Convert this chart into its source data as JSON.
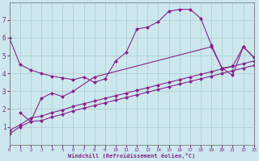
{
  "xlabel": "Windchill (Refroidissement éolien,°C)",
  "background_color": "#cce8ee",
  "grid_color": "#aacccc",
  "line_color": "#882288",
  "xlim": [
    0,
    23
  ],
  "ylim": [
    0,
    8
  ],
  "xticks": [
    0,
    1,
    2,
    3,
    4,
    5,
    6,
    7,
    8,
    9,
    10,
    11,
    12,
    13,
    14,
    15,
    16,
    17,
    18,
    19,
    20,
    21,
    22,
    23
  ],
  "yticks": [
    1,
    2,
    3,
    4,
    5,
    6,
    7
  ],
  "line1_x": [
    0,
    1,
    2,
    3,
    4,
    5,
    6,
    7,
    8,
    9,
    10,
    11,
    12,
    13,
    14,
    15,
    16,
    17,
    18,
    19,
    20,
    21,
    22,
    23
  ],
  "line1_y": [
    0.6,
    1.0,
    1.3,
    1.35,
    1.55,
    1.7,
    1.9,
    2.05,
    2.2,
    2.35,
    2.5,
    2.65,
    2.8,
    2.95,
    3.1,
    3.25,
    3.4,
    3.55,
    3.7,
    3.85,
    4.0,
    4.15,
    4.3,
    4.45
  ],
  "line2_x": [
    0,
    1,
    2,
    3,
    4,
    5,
    6,
    7,
    8,
    9,
    10,
    11,
    12,
    13,
    14,
    15,
    16,
    17,
    18,
    19,
    20,
    21,
    22,
    23
  ],
  "line2_y": [
    0.8,
    1.1,
    1.5,
    1.6,
    1.8,
    1.95,
    2.15,
    2.3,
    2.45,
    2.6,
    2.75,
    2.9,
    3.05,
    3.2,
    3.35,
    3.5,
    3.65,
    3.8,
    3.95,
    4.1,
    4.25,
    4.4,
    4.55,
    4.7
  ],
  "line3_x": [
    1,
    2,
    3,
    4,
    5,
    6,
    8,
    19,
    20,
    21,
    22,
    23
  ],
  "line3_y": [
    1.8,
    1.3,
    2.6,
    2.9,
    2.7,
    3.0,
    3.8,
    5.5,
    4.3,
    4.4,
    5.5,
    4.9
  ],
  "linemain_x": [
    0,
    1,
    2,
    3,
    4,
    5,
    6,
    7,
    8,
    9,
    10,
    11,
    12,
    13,
    14,
    15,
    16,
    17,
    18,
    19,
    20,
    21,
    22,
    23
  ],
  "linemain_y": [
    6.0,
    4.5,
    4.2,
    4.0,
    3.85,
    3.75,
    3.65,
    3.8,
    3.5,
    3.7,
    4.7,
    5.2,
    6.5,
    6.6,
    6.9,
    7.5,
    7.6,
    7.6,
    7.1,
    5.6,
    4.3,
    3.9,
    5.5,
    4.9
  ]
}
